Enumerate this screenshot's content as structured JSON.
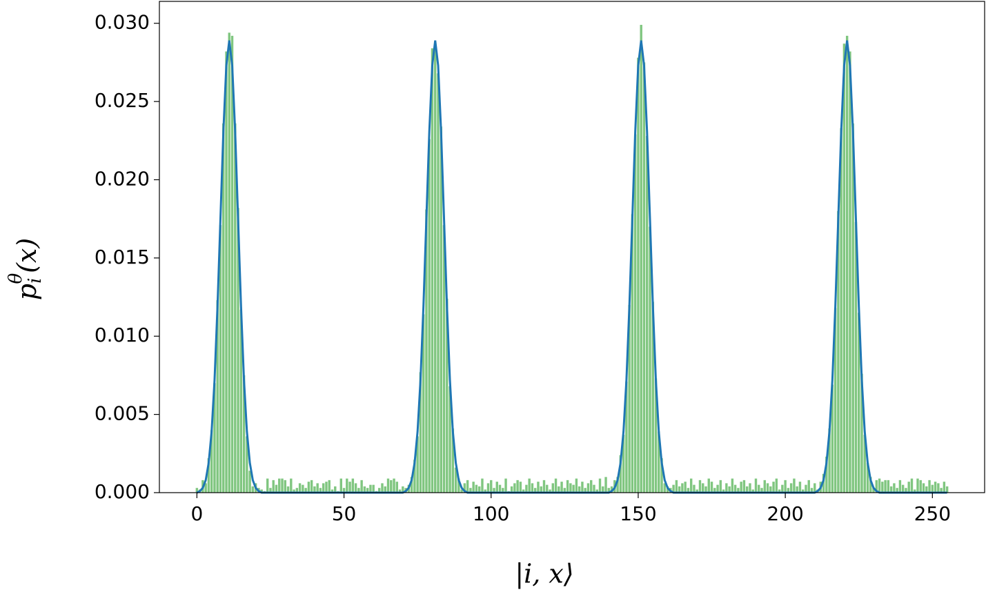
{
  "chart_data": {
    "type": "bar",
    "xlabel": "|i, x⟩",
    "ylabel": {
      "base": "p",
      "sub": "i",
      "sup": "θ",
      "rest": "(x)"
    },
    "x": [
      0,
      1,
      2,
      3,
      4,
      5,
      6,
      7,
      8,
      9,
      10,
      11,
      12,
      13,
      14,
      15,
      16,
      17,
      18,
      19,
      20,
      21,
      22,
      23,
      24,
      25,
      26,
      27,
      28,
      29,
      30,
      31,
      32,
      33,
      34,
      35,
      36,
      37,
      38,
      39,
      40,
      41,
      42,
      43,
      44,
      45,
      46,
      47,
      48,
      49,
      50,
      51,
      52,
      53,
      54,
      55,
      56,
      57,
      58,
      59,
      60,
      61,
      62,
      63,
      64,
      65,
      66,
      67,
      68,
      69,
      70,
      71,
      72,
      73,
      74,
      75,
      76,
      77,
      78,
      79,
      80,
      81,
      82,
      83,
      84,
      85,
      86,
      87,
      88,
      89,
      90,
      91,
      92,
      93,
      94,
      95,
      96,
      97,
      98,
      99,
      100,
      101,
      102,
      103,
      104,
      105,
      106,
      107,
      108,
      109,
      110,
      111,
      112,
      113,
      114,
      115,
      116,
      117,
      118,
      119,
      120,
      121,
      122,
      123,
      124,
      125,
      126,
      127,
      128,
      129,
      130,
      131,
      132,
      133,
      134,
      135,
      136,
      137,
      138,
      139,
      140,
      141,
      142,
      143,
      144,
      145,
      146,
      147,
      148,
      149,
      150,
      151,
      152,
      153,
      154,
      155,
      156,
      157,
      158,
      159,
      160,
      161,
      162,
      163,
      164,
      165,
      166,
      167,
      168,
      169,
      170,
      171,
      172,
      173,
      174,
      175,
      176,
      177,
      178,
      179,
      180,
      181,
      182,
      183,
      184,
      185,
      186,
      187,
      188,
      189,
      190,
      191,
      192,
      193,
      194,
      195,
      196,
      197,
      198,
      199,
      200,
      201,
      202,
      203,
      204,
      205,
      206,
      207,
      208,
      209,
      210,
      211,
      212,
      213,
      214,
      215,
      216,
      217,
      218,
      219,
      220,
      221,
      222,
      223,
      224,
      225,
      226,
      227,
      228,
      229,
      230,
      231,
      232,
      233,
      234,
      235,
      236,
      237,
      238,
      239,
      240,
      241,
      242,
      243,
      244,
      245,
      246,
      247,
      248,
      249,
      250,
      251,
      252,
      253,
      254,
      255
    ],
    "series": [
      {
        "type": "bar",
        "color": "#2ca02c",
        "values": [
          0.0003,
          0.0002,
          0.0008,
          0.0006,
          0.0022,
          0.004,
          0.007,
          0.0123,
          0.0171,
          0.0236,
          0.0282,
          0.0294,
          0.0292,
          0.0236,
          0.0182,
          0.0117,
          0.0075,
          0.0036,
          0.0014,
          0.0004,
          0.0006,
          0.0003,
          0.0002,
          0.0001,
          0.0009,
          0.0003,
          0.0008,
          0.0005,
          0.0009,
          0.0009,
          0.0008,
          0.0004,
          0.0009,
          0.0002,
          0.0003,
          0.0006,
          0.0005,
          0.0003,
          0.0007,
          0.0008,
          0.0004,
          0.0006,
          0.0003,
          0.0006,
          0.0007,
          0.0008,
          0.0002,
          0.0004,
          0.0001,
          0.0009,
          0.0003,
          0.0009,
          0.0007,
          0.0009,
          0.0006,
          0.0003,
          0.0008,
          0.0004,
          0.0003,
          0.0005,
          0.0005,
          0.0001,
          0.0003,
          0.0006,
          0.0004,
          0.0009,
          0.0008,
          0.0009,
          0.0007,
          0.0002,
          0.0004,
          0.0003,
          0.0005,
          0.001,
          0.0021,
          0.0036,
          0.0077,
          0.0114,
          0.0181,
          0.0226,
          0.0284,
          0.0286,
          0.0268,
          0.0234,
          0.0171,
          0.0124,
          0.0068,
          0.0041,
          0.0016,
          0.0009,
          0.0002,
          0.0006,
          0.0008,
          0.0003,
          0.0007,
          0.0005,
          0.0004,
          0.0009,
          0.0002,
          0.0006,
          0.0008,
          0.0003,
          0.0007,
          0.0005,
          0.0003,
          0.0009,
          0.0001,
          0.0004,
          0.0006,
          0.0008,
          0.0007,
          0.0002,
          0.0005,
          0.0009,
          0.0006,
          0.0003,
          0.0007,
          0.0004,
          0.0008,
          0.0005,
          0.0002,
          0.0006,
          0.0009,
          0.0004,
          0.0007,
          0.0003,
          0.0008,
          0.0006,
          0.0005,
          0.0009,
          0.0004,
          0.0007,
          0.0003,
          0.0006,
          0.0008,
          0.0005,
          0.0002,
          0.0009,
          0.0004,
          0.001,
          0.0003,
          0.0004,
          0.0008,
          0.001,
          0.0024,
          0.0037,
          0.0071,
          0.012,
          0.0178,
          0.0229,
          0.0278,
          0.0299,
          0.0275,
          0.0228,
          0.017,
          0.0122,
          0.0073,
          0.0039,
          0.0022,
          0.0006,
          0.0004,
          0.0003,
          0.0005,
          0.0008,
          0.0004,
          0.0006,
          0.0007,
          0.0003,
          0.0009,
          0.0005,
          0.0002,
          0.0008,
          0.0006,
          0.0004,
          0.0009,
          0.0007,
          0.0003,
          0.0005,
          0.0008,
          0.0002,
          0.0006,
          0.0004,
          0.0009,
          0.0005,
          0.0003,
          0.0007,
          0.0008,
          0.0004,
          0.0006,
          0.0002,
          0.0009,
          0.0005,
          0.0003,
          0.0008,
          0.0006,
          0.0004,
          0.0007,
          0.0009,
          0.0002,
          0.0005,
          0.0008,
          0.0003,
          0.0006,
          0.0009,
          0.0004,
          0.0007,
          0.0002,
          0.0005,
          0.0008,
          0.0003,
          0.0006,
          0.0002,
          0.0007,
          0.0012,
          0.0023,
          0.0041,
          0.0069,
          0.0118,
          0.018,
          0.0233,
          0.0287,
          0.0292,
          0.0282,
          0.0236,
          0.0173,
          0.0115,
          0.0076,
          0.0037,
          0.0019,
          0.001,
          0.0003,
          0.0008,
          0.0009,
          0.0007,
          0.0008,
          0.0008,
          0.0004,
          0.0006,
          0.0003,
          0.0008,
          0.0005,
          0.0003,
          0.0007,
          0.0009,
          0.0002,
          0.0009,
          0.0008,
          0.0006,
          0.0004,
          0.0008,
          0.0005,
          0.0007,
          0.0006,
          0.0003,
          0.0007,
          0.0004
        ]
      },
      {
        "type": "line",
        "color": "#1f77b4",
        "values": [
          0,
          0.0001,
          0.0003,
          0.0008,
          0.0019,
          0.0039,
          0.0072,
          0.0119,
          0.0175,
          0.0231,
          0.0273,
          0.0289,
          0.0273,
          0.0231,
          0.0175,
          0.0119,
          0.0072,
          0.0039,
          0.0019,
          0.0008,
          0.0003,
          0.0001,
          0,
          0,
          0,
          0,
          0,
          0,
          0,
          0,
          0,
          0,
          0,
          0,
          0,
          0,
          0,
          0,
          0,
          0,
          0,
          0,
          0,
          0,
          0,
          0,
          0,
          0,
          0,
          0,
          0,
          0,
          0,
          0,
          0,
          0,
          0,
          0,
          0,
          0,
          0,
          0,
          0,
          0,
          0,
          0,
          0,
          0,
          0,
          0,
          0,
          0.0001,
          0.0003,
          0.0008,
          0.0019,
          0.0039,
          0.0072,
          0.0119,
          0.0175,
          0.0231,
          0.0273,
          0.0289,
          0.0273,
          0.0231,
          0.0175,
          0.0119,
          0.0072,
          0.0039,
          0.0019,
          0.0008,
          0.0003,
          0.0001,
          0,
          0,
          0,
          0,
          0,
          0,
          0,
          0,
          0,
          0,
          0,
          0,
          0,
          0,
          0,
          0,
          0,
          0,
          0,
          0,
          0,
          0,
          0,
          0,
          0,
          0,
          0,
          0,
          0,
          0,
          0,
          0,
          0,
          0,
          0,
          0,
          0,
          0,
          0,
          0,
          0,
          0,
          0,
          0,
          0,
          0,
          0,
          0,
          0,
          0.0001,
          0.0003,
          0.0008,
          0.0019,
          0.0039,
          0.0072,
          0.0119,
          0.0175,
          0.0231,
          0.0273,
          0.0289,
          0.0273,
          0.0231,
          0.0175,
          0.0119,
          0.0072,
          0.0039,
          0.0019,
          0.0008,
          0.0003,
          0.0001,
          0,
          0,
          0,
          0,
          0,
          0,
          0,
          0,
          0,
          0,
          0,
          0,
          0,
          0,
          0,
          0,
          0,
          0,
          0,
          0,
          0,
          0,
          0,
          0,
          0,
          0,
          0,
          0,
          0,
          0,
          0,
          0,
          0,
          0,
          0,
          0,
          0,
          0,
          0,
          0,
          0,
          0,
          0,
          0,
          0,
          0,
          0,
          0,
          0,
          0.0001,
          0.0003,
          0.0008,
          0.0019,
          0.0039,
          0.0072,
          0.0119,
          0.0175,
          0.0231,
          0.0273,
          0.0289,
          0.0273,
          0.0231,
          0.0175,
          0.0119,
          0.0072,
          0.0039,
          0.0019,
          0.0008,
          0.0003,
          0.0001,
          0,
          0,
          0,
          0,
          0,
          0,
          0,
          0,
          0,
          0,
          0,
          0,
          0,
          0,
          0,
          0,
          0,
          0,
          0,
          0,
          0,
          0,
          0,
          0
        ]
      }
    ],
    "xlim": [
      -12.75,
      267.75
    ],
    "xticks": [
      0,
      50,
      100,
      150,
      200,
      250
    ],
    "ylim": [
      0,
      0.0314
    ],
    "yticks": [
      {
        "value": 0,
        "label": "0.000"
      },
      {
        "value": 0.005,
        "label": "0.005"
      },
      {
        "value": 0.01,
        "label": "0.010"
      },
      {
        "value": 0.015,
        "label": "0.015"
      },
      {
        "value": 0.02,
        "label": "0.020"
      },
      {
        "value": 0.025,
        "label": "0.025"
      },
      {
        "value": 0.03,
        "label": "0.030"
      }
    ],
    "grid": false
  }
}
